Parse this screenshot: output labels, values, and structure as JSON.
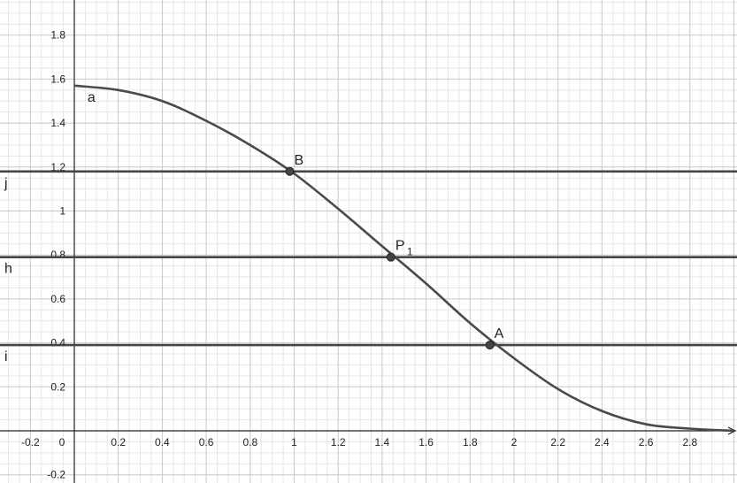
{
  "chart_data": {
    "type": "line",
    "title": "",
    "xlabel": "",
    "ylabel": "",
    "xlim": [
      -0.33,
      3.0
    ],
    "ylim": [
      -0.24,
      1.96
    ],
    "grid": true,
    "x_ticks": [
      "-0.2",
      "0",
      "0.2",
      "0.4",
      "0.6",
      "0.8",
      "1",
      "1.2",
      "1.4",
      "1.6",
      "1.8",
      "2",
      "2.2",
      "2.4",
      "2.6",
      "2.8"
    ],
    "y_ticks": [
      "-0.2",
      "0.2",
      "0.4",
      "0.6",
      "0.8",
      "1",
      "1.2",
      "1.4",
      "1.6",
      "1.8"
    ],
    "curve": {
      "name": "a",
      "x": [
        0,
        0.2,
        0.4,
        0.6,
        0.8,
        1.0,
        1.2,
        1.4,
        1.6,
        1.8,
        2.0,
        2.2,
        2.4,
        2.6,
        2.8,
        3.0
      ],
      "y": [
        1.57,
        1.55,
        1.5,
        1.41,
        1.3,
        1.17,
        1.01,
        0.84,
        0.67,
        0.49,
        0.33,
        0.19,
        0.09,
        0.03,
        0.01,
        0.0
      ]
    },
    "horizontal_lines": [
      {
        "name": "j",
        "y": 1.18
      },
      {
        "name": "h",
        "y": 0.79
      },
      {
        "name": "i",
        "y": 0.39
      }
    ],
    "points": [
      {
        "name": "B",
        "sub": "",
        "x": 0.98,
        "y": 1.18
      },
      {
        "name": "P",
        "sub": "1",
        "x": 1.44,
        "y": 0.79
      },
      {
        "name": "A",
        "sub": "",
        "x": 1.89,
        "y": 0.39
      }
    ],
    "origin_label": "0"
  }
}
